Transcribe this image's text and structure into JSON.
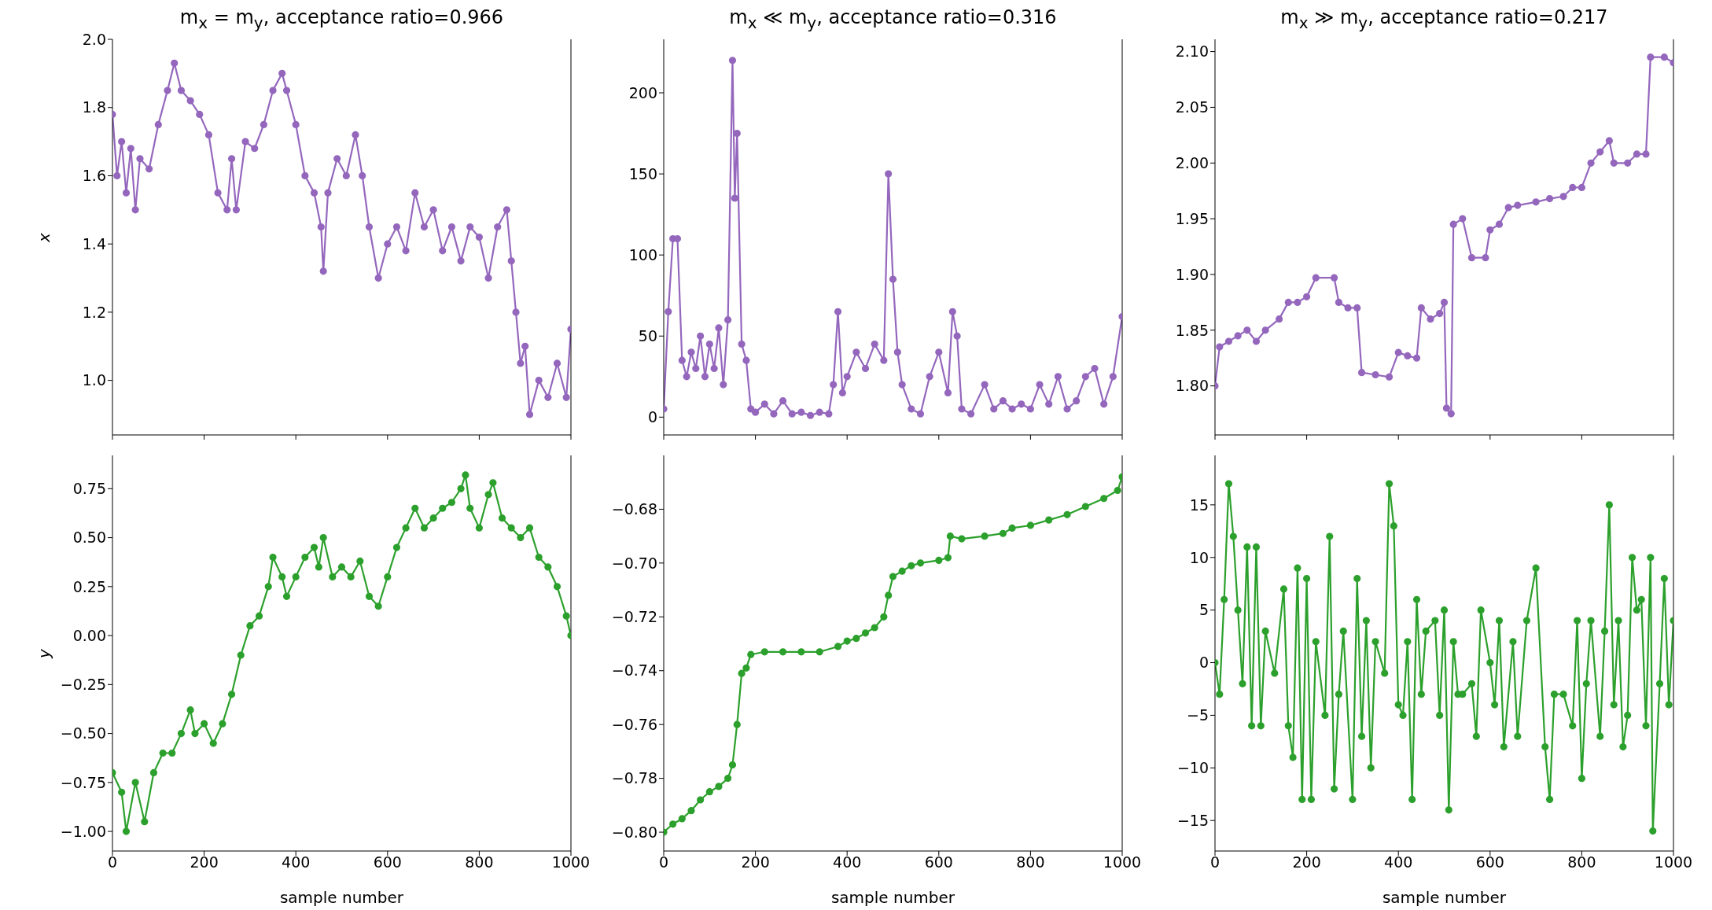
{
  "chart_data": [
    {
      "type": "line",
      "title": "m$_{x}$ = m$_{y}$, acceptance ratio=0.966",
      "ylabel": "x",
      "marker": "circle",
      "tick_labels": "y",
      "xlim": [
        0,
        1000
      ],
      "xticks": [
        0,
        200,
        400,
        600,
        800,
        1000
      ],
      "ylim": [
        0.84,
        2.0
      ],
      "yticks": [
        {
          "value": 1.0,
          "label": "1.0"
        },
        1.2,
        1.4,
        1.6,
        1.8,
        {
          "value": 2.0,
          "label": "2.0"
        }
      ],
      "x": [
        0,
        10,
        20,
        30,
        40,
        50,
        60,
        80,
        100,
        120,
        135,
        150,
        170,
        190,
        210,
        230,
        250,
        260,
        270,
        290,
        310,
        330,
        350,
        370,
        380,
        400,
        420,
        440,
        455,
        460,
        470,
        490,
        510,
        530,
        545,
        560,
        580,
        600,
        620,
        640,
        660,
        680,
        700,
        720,
        740,
        760,
        780,
        800,
        820,
        840,
        860,
        870,
        880,
        890,
        900,
        910,
        930,
        950,
        970,
        990,
        1000
      ],
      "series": [
        {
          "color": "#9467bd",
          "values": [
            1.78,
            1.6,
            1.7,
            1.55,
            1.68,
            1.5,
            1.65,
            1.62,
            1.75,
            1.85,
            1.93,
            1.85,
            1.82,
            1.78,
            1.72,
            1.55,
            1.5,
            1.65,
            1.5,
            1.7,
            1.68,
            1.75,
            1.85,
            1.9,
            1.85,
            1.75,
            1.6,
            1.55,
            1.45,
            1.32,
            1.55,
            1.65,
            1.6,
            1.72,
            1.6,
            1.45,
            1.3,
            1.4,
            1.45,
            1.38,
            1.55,
            1.45,
            1.5,
            1.38,
            1.45,
            1.35,
            1.45,
            1.42,
            1.3,
            1.45,
            1.5,
            1.35,
            1.2,
            1.05,
            1.1,
            0.9,
            1.0,
            0.95,
            1.05,
            0.95,
            1.15
          ]
        }
      ]
    },
    {
      "type": "line",
      "title": "m$_{x}$ ≪ m$_{y}$, acceptance ratio=0.316",
      "marker": "circle",
      "tick_labels": "y",
      "xlim": [
        0,
        1000
      ],
      "xticks": [
        0,
        200,
        400,
        600,
        800,
        1000
      ],
      "ylim": [
        -11,
        233
      ],
      "yticks": [
        0,
        50,
        100,
        150,
        200
      ],
      "x": [
        0,
        10,
        20,
        30,
        40,
        50,
        60,
        70,
        80,
        90,
        100,
        110,
        120,
        130,
        140,
        150,
        155,
        160,
        170,
        180,
        190,
        200,
        220,
        240,
        260,
        280,
        300,
        320,
        340,
        360,
        370,
        380,
        390,
        400,
        420,
        440,
        460,
        480,
        490,
        500,
        510,
        520,
        540,
        560,
        580,
        600,
        620,
        630,
        640,
        650,
        670,
        700,
        720,
        740,
        760,
        780,
        800,
        820,
        840,
        860,
        880,
        900,
        920,
        940,
        960,
        980,
        1000
      ],
      "series": [
        {
          "color": "#9467bd",
          "values": [
            5,
            65,
            110,
            110,
            35,
            25,
            40,
            30,
            50,
            25,
            45,
            30,
            55,
            20,
            60,
            220,
            135,
            175,
            45,
            35,
            5,
            3,
            8,
            2,
            10,
            2,
            3,
            1,
            3,
            2,
            20,
            65,
            15,
            25,
            40,
            30,
            45,
            35,
            150,
            85,
            40,
            20,
            5,
            2,
            25,
            40,
            15,
            65,
            50,
            5,
            2,
            20,
            5,
            10,
            5,
            8,
            5,
            20,
            8,
            25,
            5,
            10,
            25,
            30,
            8,
            25,
            62
          ]
        }
      ]
    },
    {
      "type": "line",
      "title": "m$_{x}$ ≫ m$_{y}$, acceptance ratio=0.217",
      "marker": "circle",
      "tick_labels": "y",
      "xlim": [
        0,
        1000
      ],
      "xticks": [
        0,
        200,
        400,
        600,
        800,
        1000
      ],
      "ylim": [
        1.756,
        2.111
      ],
      "yticks": [
        {
          "value": 1.8,
          "label": "1.80"
        },
        1.85,
        {
          "value": 1.9,
          "label": "1.90"
        },
        1.95,
        {
          "value": 2.0,
          "label": "2.00"
        },
        2.05,
        {
          "value": 2.1,
          "label": "2.10"
        }
      ],
      "x": [
        0,
        10,
        30,
        50,
        70,
        90,
        110,
        140,
        160,
        180,
        200,
        220,
        260,
        270,
        290,
        310,
        320,
        350,
        380,
        400,
        420,
        440,
        450,
        470,
        490,
        500,
        505,
        515,
        520,
        540,
        560,
        590,
        600,
        620,
        640,
        660,
        700,
        730,
        760,
        780,
        800,
        820,
        840,
        860,
        870,
        900,
        920,
        940,
        950,
        980,
        1000
      ],
      "series": [
        {
          "color": "#9467bd",
          "values": [
            1.8,
            1.835,
            1.84,
            1.845,
            1.85,
            1.84,
            1.85,
            1.86,
            1.875,
            1.875,
            1.88,
            1.897,
            1.897,
            1.875,
            1.87,
            1.87,
            1.812,
            1.81,
            1.808,
            1.83,
            1.827,
            1.825,
            1.87,
            1.86,
            1.865,
            1.875,
            1.78,
            1.775,
            1.945,
            1.95,
            1.915,
            1.915,
            1.94,
            1.945,
            1.96,
            1.962,
            1.965,
            1.968,
            1.97,
            1.978,
            1.978,
            2.0,
            2.01,
            2.02,
            2.0,
            2.0,
            2.008,
            2.008,
            2.095,
            2.095,
            2.09
          ]
        }
      ]
    },
    {
      "type": "line",
      "xlabel": "sample number",
      "ylabel": "y",
      "marker": "circle",
      "xlim": [
        0,
        1000
      ],
      "xticks": [
        0,
        200,
        400,
        600,
        800,
        1000
      ],
      "ylim": [
        -1.1,
        0.92
      ],
      "yticks": [
        {
          "value": -1,
          "label": "−1.00"
        },
        {
          "value": -0.75,
          "label": "−0.75"
        },
        {
          "value": -0.5,
          "label": "−0.50"
        },
        {
          "value": -0.25,
          "label": "−0.25"
        },
        {
          "value": 0,
          "label": "0.00"
        },
        {
          "value": 0.25,
          "label": "0.25"
        },
        {
          "value": 0.5,
          "label": "0.50"
        },
        {
          "value": 0.75,
          "label": "0.75"
        }
      ],
      "x": [
        0,
        20,
        30,
        50,
        70,
        90,
        110,
        130,
        150,
        170,
        180,
        200,
        220,
        240,
        260,
        280,
        300,
        320,
        340,
        350,
        370,
        380,
        400,
        420,
        440,
        450,
        460,
        480,
        500,
        520,
        540,
        560,
        580,
        600,
        620,
        640,
        660,
        680,
        700,
        720,
        740,
        760,
        770,
        780,
        800,
        820,
        830,
        850,
        870,
        890,
        910,
        930,
        950,
        970,
        990,
        1000
      ],
      "series": [
        {
          "color": "#2ca02c",
          "values": [
            -0.7,
            -0.8,
            -1.0,
            -0.75,
            -0.95,
            -0.7,
            -0.6,
            -0.6,
            -0.5,
            -0.38,
            -0.5,
            -0.45,
            -0.55,
            -0.45,
            -0.3,
            -0.1,
            0.05,
            0.1,
            0.25,
            0.4,
            0.3,
            0.2,
            0.3,
            0.4,
            0.45,
            0.35,
            0.5,
            0.3,
            0.35,
            0.3,
            0.38,
            0.2,
            0.15,
            0.3,
            0.45,
            0.55,
            0.65,
            0.55,
            0.6,
            0.65,
            0.68,
            0.75,
            0.82,
            0.65,
            0.55,
            0.72,
            0.78,
            0.6,
            0.55,
            0.5,
            0.55,
            0.4,
            0.35,
            0.25,
            0.1,
            0.0
          ]
        }
      ]
    },
    {
      "type": "line",
      "xlabel": "sample number",
      "marker": "circle",
      "xlim": [
        0,
        1000
      ],
      "xticks": [
        0,
        200,
        400,
        600,
        800,
        1000
      ],
      "ylim": [
        -0.807,
        -0.66
      ],
      "yticks": [
        {
          "value": -0.8,
          "label": "−0.80"
        },
        {
          "value": -0.78,
          "label": "−0.78"
        },
        {
          "value": -0.76,
          "label": "−0.76"
        },
        {
          "value": -0.74,
          "label": "−0.74"
        },
        {
          "value": -0.72,
          "label": "−0.72"
        },
        {
          "value": -0.7,
          "label": "−0.70"
        },
        {
          "value": -0.68,
          "label": "−0.68"
        }
      ],
      "x": [
        0,
        20,
        40,
        60,
        80,
        100,
        120,
        140,
        150,
        160,
        170,
        180,
        190,
        220,
        260,
        300,
        340,
        380,
        400,
        420,
        440,
        460,
        480,
        490,
        500,
        520,
        540,
        560,
        600,
        620,
        625,
        650,
        700,
        740,
        760,
        800,
        840,
        880,
        920,
        960,
        990,
        1000
      ],
      "series": [
        {
          "color": "#2ca02c",
          "values": [
            -0.8,
            -0.797,
            -0.795,
            -0.792,
            -0.788,
            -0.785,
            -0.783,
            -0.78,
            -0.775,
            -0.76,
            -0.741,
            -0.739,
            -0.734,
            -0.733,
            -0.733,
            -0.733,
            -0.733,
            -0.731,
            -0.729,
            -0.728,
            -0.726,
            -0.724,
            -0.72,
            -0.712,
            -0.705,
            -0.703,
            -0.701,
            -0.7,
            -0.699,
            -0.698,
            -0.69,
            -0.691,
            -0.69,
            -0.689,
            -0.687,
            -0.686,
            -0.684,
            -0.682,
            -0.679,
            -0.676,
            -0.673,
            -0.668
          ]
        }
      ]
    },
    {
      "type": "line",
      "xlabel": "sample number",
      "marker": "circle",
      "xlim": [
        0,
        1000
      ],
      "xticks": [
        0,
        200,
        400,
        600,
        800,
        1000
      ],
      "ylim": [
        -17.9,
        19.7
      ],
      "yticks": [
        {
          "value": -15,
          "label": "−15"
        },
        {
          "value": -10,
          "label": "−10"
        },
        {
          "value": -5,
          "label": "−5"
        },
        0,
        5,
        10,
        15
      ],
      "x": [
        0,
        10,
        20,
        30,
        40,
        50,
        60,
        70,
        80,
        90,
        100,
        110,
        130,
        150,
        160,
        170,
        180,
        190,
        200,
        210,
        220,
        240,
        250,
        260,
        270,
        280,
        300,
        310,
        320,
        330,
        340,
        350,
        370,
        380,
        390,
        400,
        410,
        420,
        430,
        440,
        450,
        460,
        480,
        490,
        500,
        510,
        520,
        530,
        540,
        560,
        570,
        580,
        600,
        610,
        620,
        630,
        650,
        660,
        680,
        700,
        720,
        730,
        740,
        760,
        780,
        790,
        800,
        810,
        820,
        840,
        850,
        860,
        870,
        880,
        890,
        900,
        910,
        920,
        930,
        940,
        950,
        955,
        970,
        980,
        990,
        1000
      ],
      "series": [
        {
          "color": "#2ca02c",
          "values": [
            0,
            -3,
            6,
            17,
            12,
            5,
            -2,
            11,
            -6,
            11,
            -6,
            3,
            -1,
            7,
            -6,
            -9,
            9,
            -13,
            8,
            -13,
            2,
            -5,
            12,
            -12,
            -3,
            3,
            -13,
            8,
            -7,
            4,
            -10,
            2,
            -1,
            17,
            13,
            -4,
            -5,
            2,
            -13,
            6,
            -3,
            3,
            4,
            -5,
            5,
            -14,
            2,
            -3,
            -3,
            -2,
            -7,
            5,
            0,
            -4,
            4,
            -8,
            2,
            -7,
            4,
            9,
            -8,
            -13,
            -3,
            -3,
            -6,
            4,
            -11,
            -2,
            4,
            -7,
            3,
            15,
            -4,
            4,
            -8,
            -5,
            10,
            5,
            6,
            -6,
            10,
            -16,
            -2,
            8,
            -4,
            4
          ]
        }
      ]
    }
  ]
}
